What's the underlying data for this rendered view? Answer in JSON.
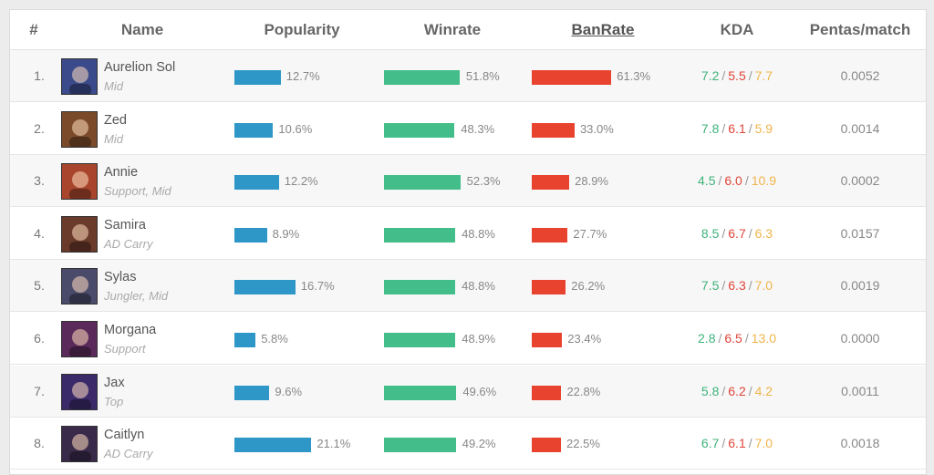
{
  "headers": {
    "rank": "#",
    "name": "Name",
    "popularity": "Popularity",
    "winrate": "Winrate",
    "banrate": "BanRate",
    "kda": "KDA",
    "pentas": "Pentas/match"
  },
  "rows": [
    {
      "rank": "1.",
      "name": "Aurelion Sol",
      "role": "Mid",
      "popularity": "12.7%",
      "pop_value": 12.7,
      "winrate": "51.8%",
      "win_value": 51.8,
      "banrate": "61.3%",
      "ban_value": 61.3,
      "kills": "7.2",
      "deaths": "5.5",
      "assists": "7.7",
      "pentas": "0.0052",
      "avatar_color": "#3b4a8a"
    },
    {
      "rank": "2.",
      "name": "Zed",
      "role": "Mid",
      "popularity": "10.6%",
      "pop_value": 10.6,
      "winrate": "48.3%",
      "win_value": 48.3,
      "banrate": "33.0%",
      "ban_value": 33.0,
      "kills": "7.8",
      "deaths": "6.1",
      "assists": "5.9",
      "pentas": "0.0014",
      "avatar_color": "#7a4a2a"
    },
    {
      "rank": "3.",
      "name": "Annie",
      "role": "Support, Mid",
      "popularity": "12.2%",
      "pop_value": 12.2,
      "winrate": "52.3%",
      "win_value": 52.3,
      "banrate": "28.9%",
      "ban_value": 28.9,
      "kills": "4.5",
      "deaths": "6.0",
      "assists": "10.9",
      "pentas": "0.0002",
      "avatar_color": "#a8452c"
    },
    {
      "rank": "4.",
      "name": "Samira",
      "role": "AD Carry",
      "popularity": "8.9%",
      "pop_value": 8.9,
      "winrate": "48.8%",
      "win_value": 48.8,
      "banrate": "27.7%",
      "ban_value": 27.7,
      "kills": "8.5",
      "deaths": "6.7",
      "assists": "6.3",
      "pentas": "0.0157",
      "avatar_color": "#6a3a2a"
    },
    {
      "rank": "5.",
      "name": "Sylas",
      "role": "Jungler, Mid",
      "popularity": "16.7%",
      "pop_value": 16.7,
      "winrate": "48.8%",
      "win_value": 48.8,
      "banrate": "26.2%",
      "ban_value": 26.2,
      "kills": "7.5",
      "deaths": "6.3",
      "assists": "7.0",
      "pentas": "0.0019",
      "avatar_color": "#4a4a6a"
    },
    {
      "rank": "6.",
      "name": "Morgana",
      "role": "Support",
      "popularity": "5.8%",
      "pop_value": 5.8,
      "winrate": "48.9%",
      "win_value": 48.9,
      "banrate": "23.4%",
      "ban_value": 23.4,
      "kills": "2.8",
      "deaths": "6.5",
      "assists": "13.0",
      "pentas": "0.0000",
      "avatar_color": "#5a2a5a"
    },
    {
      "rank": "7.",
      "name": "Jax",
      "role": "Top",
      "popularity": "9.6%",
      "pop_value": 9.6,
      "winrate": "49.6%",
      "win_value": 49.6,
      "banrate": "22.8%",
      "ban_value": 22.8,
      "kills": "5.8",
      "deaths": "6.2",
      "assists": "4.2",
      "pentas": "0.0011",
      "avatar_color": "#3a2a6a"
    },
    {
      "rank": "8.",
      "name": "Caitlyn",
      "role": "AD Carry",
      "popularity": "21.1%",
      "pop_value": 21.1,
      "winrate": "49.2%",
      "win_value": 49.2,
      "banrate": "22.5%",
      "ban_value": 22.5,
      "kills": "6.7",
      "deaths": "6.1",
      "assists": "7.0",
      "pentas": "0.0018",
      "avatar_color": "#3a2a4a"
    }
  ],
  "colors": {
    "popularity_bar": "#2e97c7",
    "winrate_bar": "#43be8b",
    "banrate_bar": "#e8432f",
    "kills": "#3fb37a",
    "deaths": "#e0463a",
    "assists": "#f0b44a"
  }
}
